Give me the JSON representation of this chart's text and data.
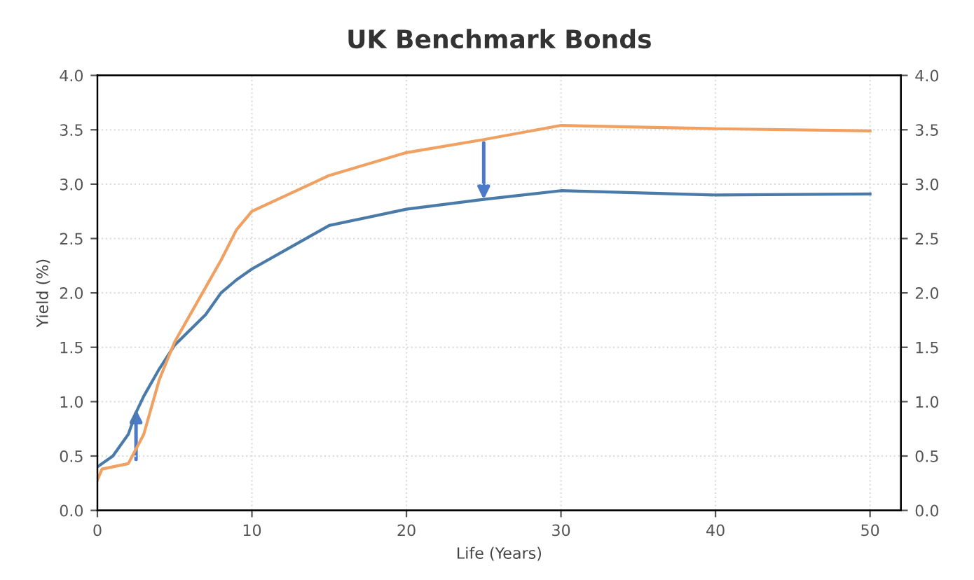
{
  "chart_data": {
    "type": "line",
    "title": "UK Benchmark Bonds",
    "xlabel": "Life (Years)",
    "ylabel": "Yield (%)",
    "series": [
      {
        "color": "#4a7aa8",
        "x": [
          0,
          1,
          2,
          2.5,
          3,
          4,
          5,
          7,
          8,
          9,
          10,
          12,
          15,
          20,
          25,
          30,
          40,
          50
        ],
        "values": [
          0.4,
          0.5,
          0.7,
          0.9,
          1.05,
          1.3,
          1.52,
          1.8,
          2.0,
          2.12,
          2.22,
          2.38,
          2.62,
          2.77,
          2.86,
          2.94,
          2.9,
          2.91
        ]
      },
      {
        "color": "#f0a060",
        "x": [
          0,
          0.3,
          2,
          3,
          4,
          5,
          7,
          8,
          9,
          10,
          15,
          20,
          25,
          30,
          40,
          50
        ],
        "values": [
          0.28,
          0.38,
          0.43,
          0.7,
          1.2,
          1.55,
          2.05,
          2.3,
          2.58,
          2.75,
          3.08,
          3.29,
          3.41,
          3.54,
          3.51,
          3.49
        ]
      }
    ],
    "xlim": [
      0,
      52
    ],
    "xticks": [
      0,
      10,
      20,
      30,
      40,
      50
    ],
    "ylim": [
      0,
      4
    ],
    "yticks": [
      {
        "value": 0,
        "label": "0.0"
      },
      0.5,
      {
        "value": 1,
        "label": "1.0"
      },
      1.5,
      {
        "value": 2,
        "label": "2.0"
      },
      2.5,
      {
        "value": 3,
        "label": "3.0"
      },
      3.5,
      {
        "value": 4,
        "label": "4.0"
      }
    ],
    "y2lim": [
      0,
      4
    ],
    "y2ticks": [
      {
        "value": 0,
        "label": "0.0"
      },
      0.5,
      {
        "value": 1,
        "label": "1.0"
      },
      1.5,
      {
        "value": 2,
        "label": "2.0"
      },
      2.5,
      {
        "value": 3,
        "label": "3.0"
      },
      3.5,
      {
        "value": 4,
        "label": "4.0"
      }
    ],
    "grid": true,
    "legend": false
  }
}
